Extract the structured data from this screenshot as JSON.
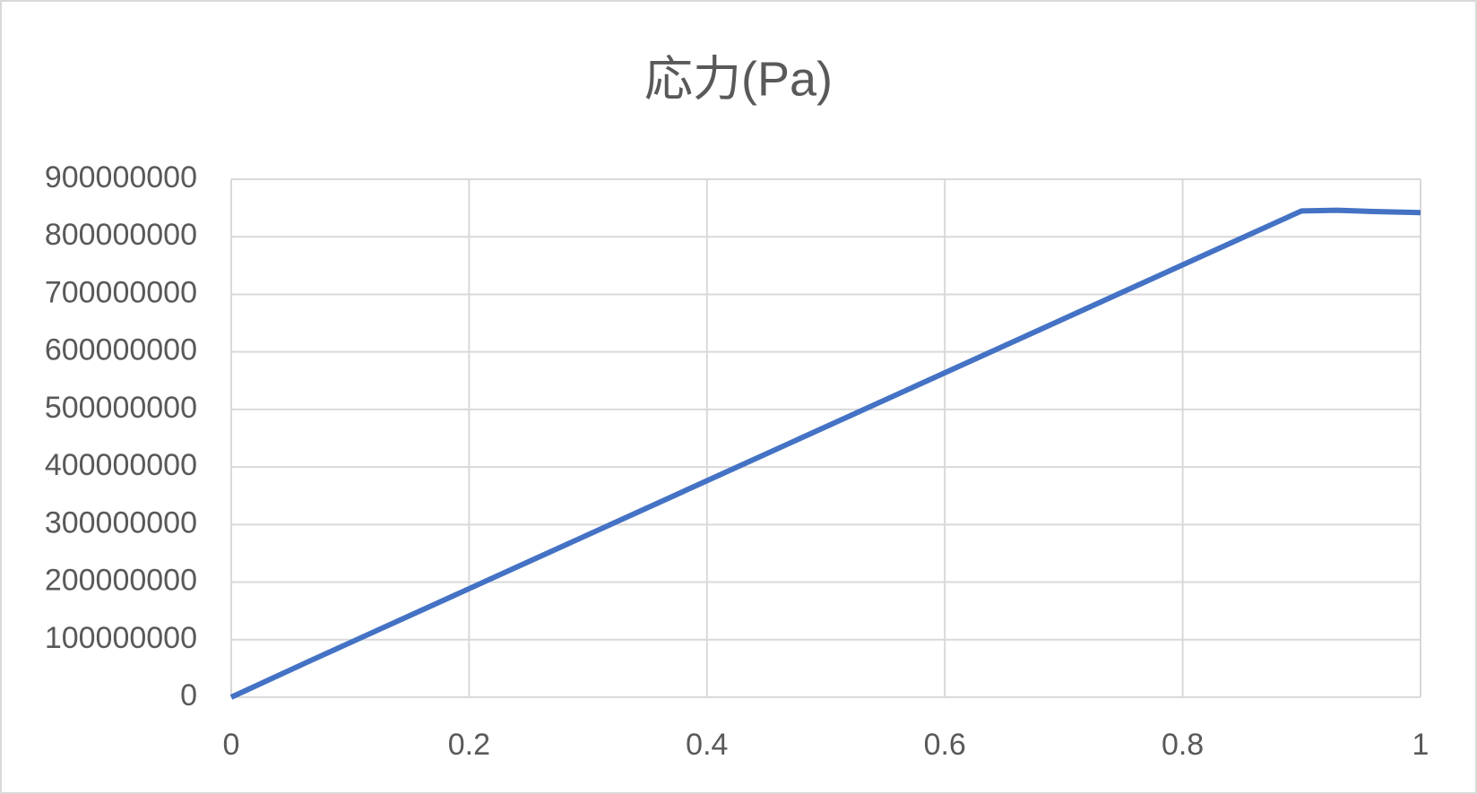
{
  "chart_data": {
    "type": "line",
    "title": "応力(Pa)",
    "x": [
      0,
      0.065,
      0.9,
      0.93,
      0.96,
      1
    ],
    "series": [
      {
        "name": "応力(Pa)",
        "color": "#4472c4",
        "values": [
          0,
          62000000,
          845000000,
          846000000,
          844000000,
          842000000
        ]
      }
    ],
    "xlim": [
      0,
      1
    ],
    "xticks": [
      0,
      0.2,
      0.4,
      0.6,
      0.8,
      1
    ],
    "ylim": [
      0,
      900000000
    ],
    "yticks": [
      0,
      100000000,
      200000000,
      300000000,
      400000000,
      500000000,
      600000000,
      700000000,
      800000000,
      900000000
    ],
    "grid": true
  }
}
